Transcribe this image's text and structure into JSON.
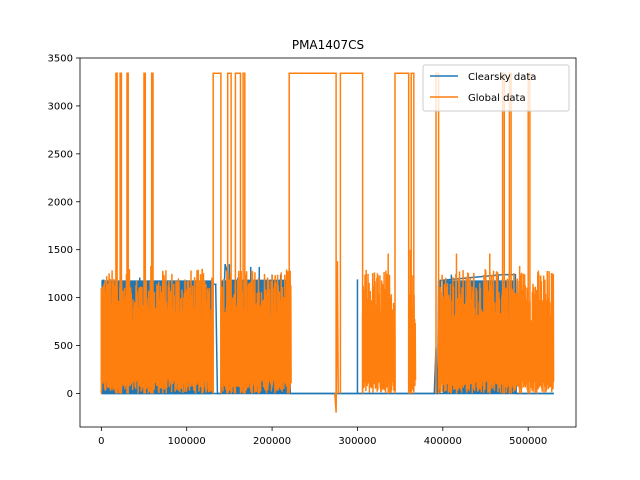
{
  "chart_data": {
    "type": "line",
    "title": "PMA1407CS",
    "xlabel": "",
    "ylabel": "",
    "xlim": [
      -25000,
      556000
    ],
    "ylim": [
      -350,
      3500
    ],
    "xticks": [
      0,
      100000,
      200000,
      300000,
      400000,
      500000
    ],
    "xtick_labels": [
      "0",
      "100000",
      "200000",
      "300000",
      "400000",
      "500000"
    ],
    "yticks": [
      0,
      500,
      1000,
      1500,
      2000,
      2500,
      3000,
      3500
    ],
    "ytick_labels": [
      "0",
      "500",
      "1000",
      "1500",
      "2000",
      "2500",
      "3000",
      "3500"
    ],
    "grid": false,
    "legend_position": "top-right",
    "series": [
      {
        "name": "Clearsky data",
        "color": "#1f77b4",
        "segments": [
          {
            "x": [
              0,
              1200,
              1500,
              3000,
              4200,
              5000,
              120000,
              125000,
              128000,
              130000,
              134000,
              136000,
              138000,
              140000,
              145000,
              150000,
              200000,
              220000,
              221000,
              222000,
              300000,
              390000,
              392000,
              393000,
              394000,
              395000,
              396000,
              397000,
              398000,
              470000,
              480000,
              485000,
              486000,
              530000
            ],
            "y": [
              0,
              0,
              1180,
              1180,
              0,
              0,
              0,
              0,
              0,
              1140,
              1140,
              0,
              0,
              0,
              1350,
              1180,
              1180,
              1180,
              0,
              0,
              0,
              0,
              480,
              0,
              0,
              1180,
              0,
              1180,
              1180,
              1240,
              1240,
              1240,
              0,
              0
            ]
          }
        ],
        "bands": [
          {
            "x0": 400000,
            "x1": 486000,
            "y0": 0,
            "y1": 1180
          }
        ],
        "spikes": [
          {
            "x": 30000,
            "y": 1200
          },
          {
            "x": 45000,
            "y": 1210
          },
          {
            "x": 60000,
            "y": 1200
          },
          {
            "x": 150000,
            "y": 1350
          },
          {
            "x": 160000,
            "y": 1210
          },
          {
            "x": 175000,
            "y": 1320
          },
          {
            "x": 185000,
            "y": 1320
          },
          {
            "x": 200000,
            "y": 1240
          },
          {
            "x": 210000,
            "y": 1240
          },
          {
            "x": 300000,
            "y": 1190
          },
          {
            "x": 410000,
            "y": 1240
          },
          {
            "x": 465000,
            "y": 1240
          }
        ]
      },
      {
        "name": "Global data",
        "color": "#ff7f0e",
        "plateau_value": 3340,
        "plateaus": [
          {
            "x0": 17000,
            "x1": 18500
          },
          {
            "x0": 22000,
            "x1": 23500
          },
          {
            "x0": 30000,
            "x1": 31500
          },
          {
            "x0": 50000,
            "x1": 51500
          },
          {
            "x0": 59000,
            "x1": 60500
          },
          {
            "x0": 131000,
            "x1": 140000
          },
          {
            "x0": 148000,
            "x1": 152000
          },
          {
            "x0": 157000,
            "x1": 163000
          },
          {
            "x0": 166000,
            "x1": 168000
          },
          {
            "x0": 220000,
            "x1": 275000
          },
          {
            "x0": 280000,
            "x1": 306000
          },
          {
            "x0": 344000,
            "x1": 360000
          },
          {
            "x0": 363000,
            "x1": 366000
          },
          {
            "x0": 392000,
            "x1": 395000
          },
          {
            "x0": 470000,
            "x1": 472000
          },
          {
            "x0": 478000,
            "x1": 480000
          },
          {
            "x0": 500000,
            "x1": 502000
          }
        ],
        "dense_regions": [
          {
            "x0": 0,
            "x1": 130000,
            "ymax": 1300
          },
          {
            "x0": 140000,
            "x1": 222000,
            "ymax": 1300
          },
          {
            "x0": 306000,
            "x1": 344000,
            "ymax": 1300
          },
          {
            "x0": 360000,
            "x1": 368000,
            "ymax": 1300
          },
          {
            "x0": 395000,
            "x1": 530000,
            "ymax": 1300
          }
        ],
        "dense_peaks": [
          {
            "x": 58000,
            "y": 1330
          },
          {
            "x": 72000,
            "y": 1280
          },
          {
            "x": 118000,
            "y": 1300
          },
          {
            "x": 147000,
            "y": 1280
          },
          {
            "x": 176000,
            "y": 1280
          },
          {
            "x": 336000,
            "y": 1460
          },
          {
            "x": 362000,
            "y": 1500
          },
          {
            "x": 416000,
            "y": 1460
          },
          {
            "x": 455000,
            "y": 1460
          },
          {
            "x": 490000,
            "y": 1330
          },
          {
            "x": 510000,
            "y": 1080
          }
        ],
        "dip": {
          "x": 275000,
          "y": -200
        }
      }
    ]
  }
}
